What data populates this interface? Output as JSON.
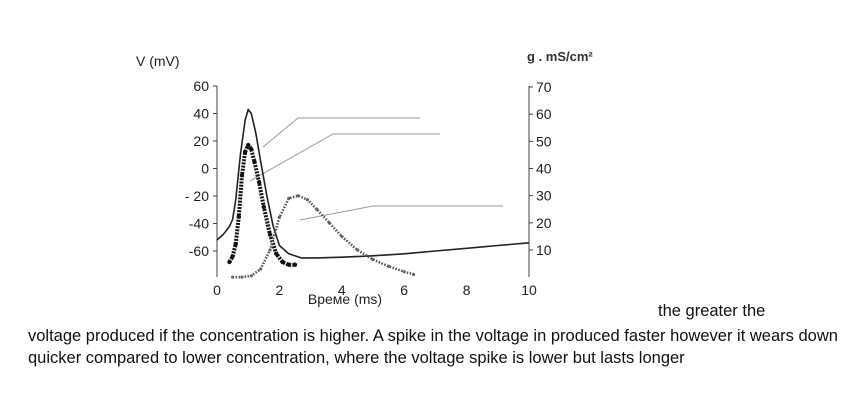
{
  "chart_data": {
    "type": "line",
    "ylabel_left": "V (mV)",
    "ylabel_right": "g . mS/cm²",
    "xlabel": "Време (ms)",
    "xlim": [
      0,
      10
    ],
    "ylim_left": [
      -70,
      60
    ],
    "ylim_right": [
      0,
      70
    ],
    "x_ticks": [
      "0",
      "2",
      "4",
      "6",
      "8",
      "10"
    ],
    "y_ticks_left": [
      "60",
      "40",
      "20",
      "0",
      "- 20",
      "-40",
      "-60"
    ],
    "y_ticks_right": [
      "70",
      "60",
      "50",
      "40",
      "30",
      "20",
      "10"
    ],
    "grid": false,
    "series": [
      {
        "style": "solid-thin",
        "axis": "left",
        "x": [
          0,
          0.2,
          0.4,
          0.5,
          0.6,
          0.75,
          0.9,
          1.0,
          1.1,
          1.25,
          1.4,
          1.6,
          1.8,
          2.0,
          2.3,
          2.7,
          3.2,
          4.0,
          5.0,
          6.0,
          7.0,
          8.0,
          9.0,
          10.0
        ],
        "values": [
          -52,
          -48,
          -42,
          -37,
          -23,
          10,
          35,
          43,
          40,
          25,
          5,
          -20,
          -42,
          -56,
          -62,
          -65,
          -65,
          -64.5,
          -63.5,
          -62,
          -60,
          -58,
          -56,
          -54
        ]
      },
      {
        "style": "bold-dotted",
        "axis": "left",
        "x": [
          0.4,
          0.5,
          0.6,
          0.7,
          0.8,
          0.9,
          1.0,
          1.1,
          1.2,
          1.35,
          1.5,
          1.7,
          1.9,
          2.1,
          2.3,
          2.5
        ],
        "values": [
          -68,
          -64,
          -55,
          -35,
          -5,
          12,
          17,
          14,
          5,
          -10,
          -28,
          -48,
          -62,
          -68,
          -70,
          -70
        ]
      },
      {
        "style": "dotted",
        "axis": "right",
        "x": [
          0.5,
          0.8,
          1.1,
          1.4,
          1.7,
          2.0,
          2.3,
          2.6,
          2.9,
          3.2,
          3.6,
          4.0,
          4.5,
          5.0,
          5.5,
          6.0,
          6.3
        ],
        "values": [
          0,
          0,
          0.5,
          3,
          10,
          22,
          29,
          30,
          28.5,
          25,
          20,
          15,
          10,
          6.5,
          4,
          2,
          1
        ]
      }
    ]
  },
  "caption": {
    "inline": "the greater the",
    "body": "voltage produced if the concentration is higher. A spike in the voltage in produced faster however it wears down quicker compared to lower concentration, where the voltage spike is lower but lasts longer"
  }
}
